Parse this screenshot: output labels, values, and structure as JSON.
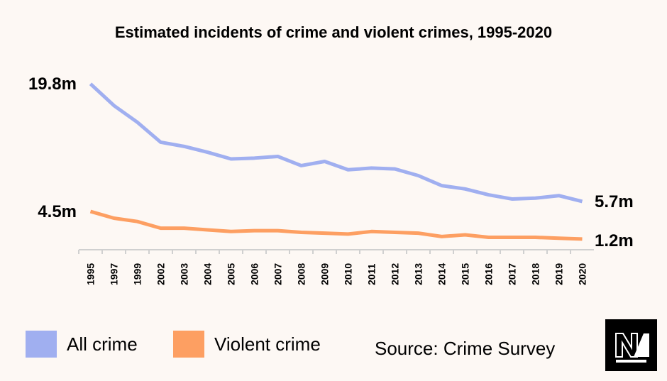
{
  "chart_data": {
    "type": "line",
    "title": "Estimated incidents of crime and violent crimes, 1995-2020",
    "categories": [
      "1995",
      "1997",
      "1999",
      "2002",
      "2003",
      "2004",
      "2005",
      "2006",
      "2007",
      "2008",
      "2009",
      "2010",
      "2011",
      "2012",
      "2013",
      "2014",
      "2015",
      "2016",
      "2017",
      "2018",
      "2019",
      "2020"
    ],
    "unit": "m",
    "ylim": [
      0,
      20
    ],
    "grid": false,
    "legend_position": "bottom",
    "series": [
      {
        "name": "All crime",
        "color": "#a0aff0",
        "values": [
          19.8,
          17.2,
          15.2,
          12.8,
          12.3,
          11.6,
          10.8,
          10.9,
          11.1,
          10.0,
          10.5,
          9.5,
          9.7,
          9.6,
          8.8,
          7.6,
          7.2,
          6.5,
          6.0,
          6.1,
          6.4,
          5.7
        ],
        "start_label": "19.8m",
        "end_label": "5.7m"
      },
      {
        "name": "Violent crime",
        "color": "#fd9f62",
        "values": [
          4.5,
          3.7,
          3.3,
          2.5,
          2.5,
          2.3,
          2.1,
          2.2,
          2.2,
          2.0,
          1.9,
          1.8,
          2.1,
          2.0,
          1.9,
          1.5,
          1.7,
          1.4,
          1.4,
          1.4,
          1.3,
          1.2
        ],
        "start_label": "4.5m",
        "end_label": "1.2m"
      }
    ]
  },
  "source": "Source: Crime Survey",
  "logo": {
    "text": "NM",
    "icon": "newsmakers-logo"
  }
}
